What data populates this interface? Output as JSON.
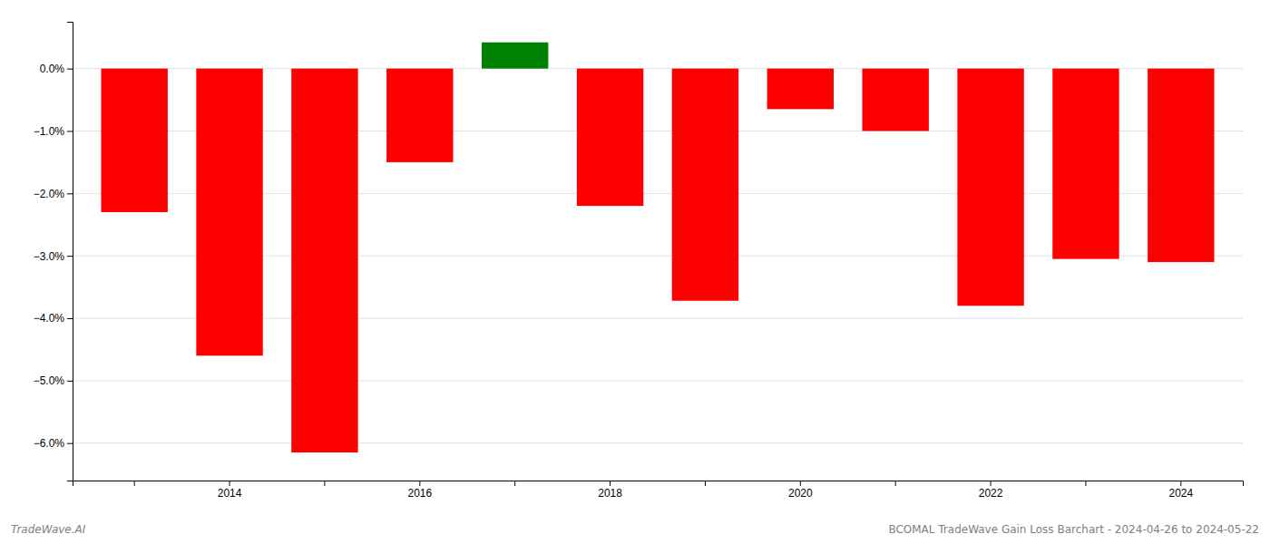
{
  "chart_data": {
    "type": "bar",
    "categories": [
      null,
      "2014",
      null,
      "2016",
      null,
      "2018",
      null,
      "2020",
      null,
      "2022",
      null,
      "2024"
    ],
    "values": [
      -2.3,
      -4.6,
      -6.15,
      -1.5,
      0.42,
      -2.2,
      -3.72,
      -0.65,
      -1.0,
      -3.8,
      -3.05,
      -3.1
    ],
    "colors": [
      "red",
      "red",
      "red",
      "red",
      "green",
      "red",
      "red",
      "red",
      "red",
      "red",
      "red",
      "red"
    ],
    "ylim": [
      -6.6,
      0.75
    ],
    "yticks": [
      {
        "value": 0.0,
        "label": "0.0%"
      },
      {
        "value": -1.0,
        "label": "−1.0%"
      },
      {
        "value": -2.0,
        "label": "−2.0%"
      },
      {
        "value": -3.0,
        "label": "−3.0%"
      },
      {
        "value": -4.0,
        "label": "−4.0%"
      },
      {
        "value": -5.0,
        "label": "−5.0%"
      },
      {
        "value": -6.0,
        "label": "−6.0%"
      }
    ],
    "grid": true,
    "annotations": [
      "TradeWave.AI",
      "BCOMAL TradeWave Gain Loss Barchart - 2024-04-26 to 2024-05-22"
    ]
  }
}
